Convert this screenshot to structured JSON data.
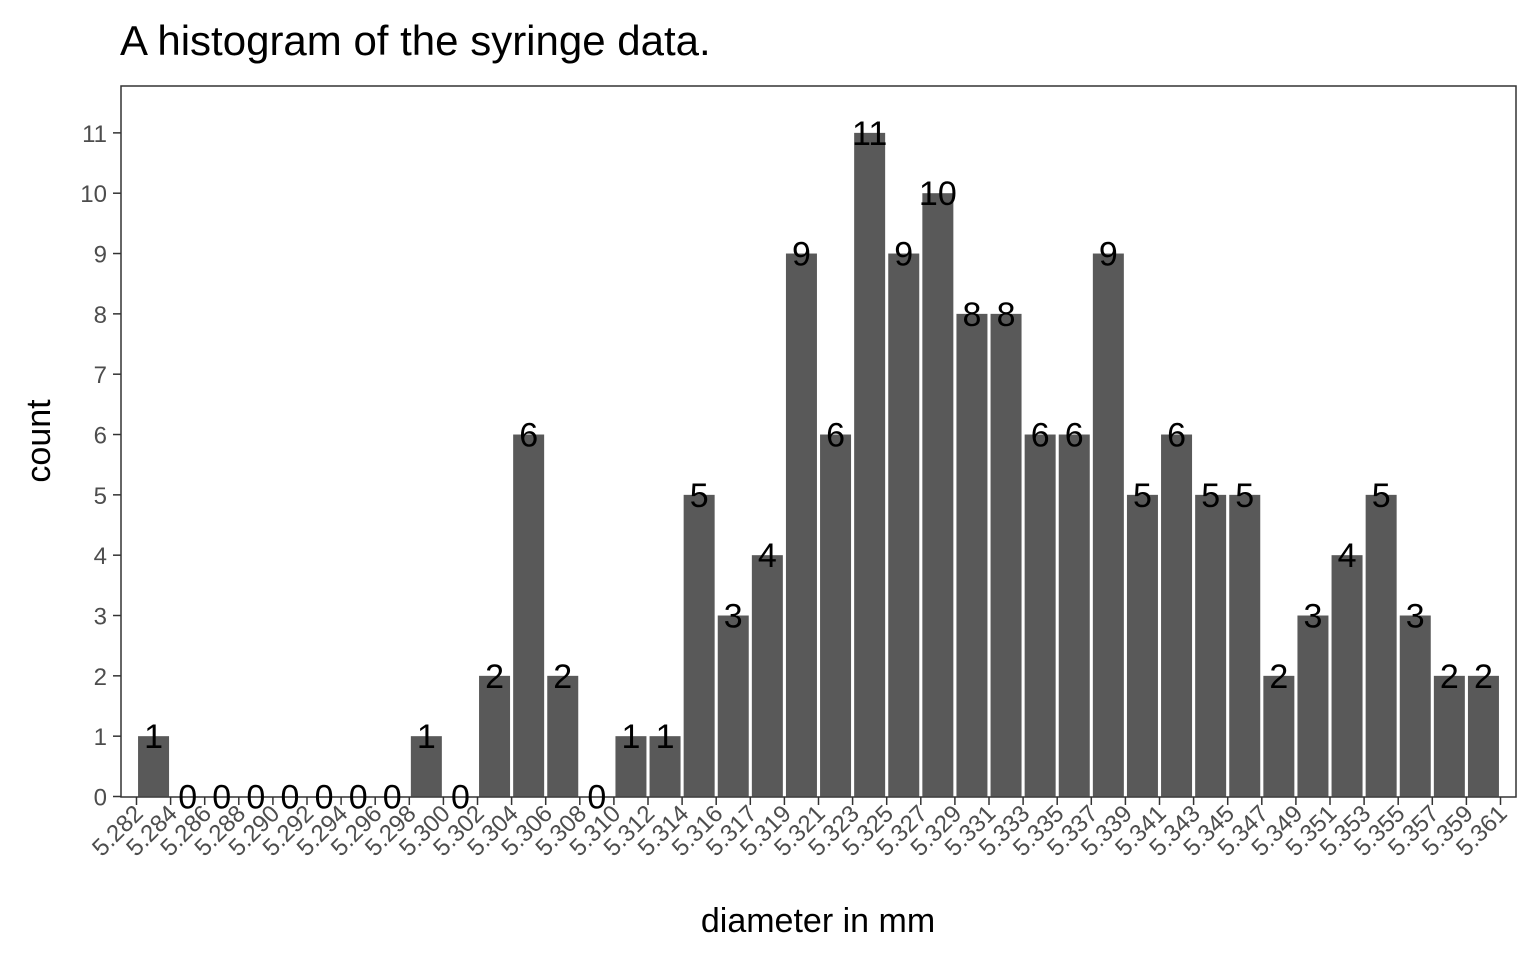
{
  "chart_data": {
    "type": "bar",
    "title": "A histogram of the syringe data.",
    "xlabel": "diameter in mm",
    "ylabel": "count",
    "ylim": [
      0,
      11.7
    ],
    "yticks": [
      "0",
      "1",
      "2",
      "3",
      "4",
      "5",
      "6",
      "7",
      "8",
      "9",
      "10",
      "11"
    ],
    "xticks": [
      "5.282",
      "5.284",
      "5.286",
      "5.288",
      "5.290",
      "5.292",
      "5.294",
      "5.296",
      "5.298",
      "5.300",
      "5.302",
      "5.304",
      "5.306",
      "5.308",
      "5.310",
      "5.312",
      "5.314",
      "5.316",
      "5.317",
      "5.319",
      "5.321",
      "5.323",
      "5.325",
      "5.327",
      "5.329",
      "5.331",
      "5.333",
      "5.335",
      "5.337",
      "5.339",
      "5.341",
      "5.343",
      "5.345",
      "5.347",
      "5.349",
      "5.351",
      "5.353",
      "5.355",
      "5.357",
      "5.359",
      "5.361"
    ],
    "values": [
      1,
      0,
      0,
      0,
      0,
      0,
      0,
      0,
      1,
      0,
      2,
      6,
      2,
      0,
      1,
      1,
      5,
      3,
      4,
      9,
      6,
      11,
      9,
      10,
      8,
      8,
      6,
      6,
      9,
      5,
      6,
      5,
      5,
      2,
      3,
      4,
      5,
      3,
      2,
      2
    ],
    "value_labels": [
      "1",
      "0",
      "0",
      "0",
      "0",
      "0",
      "0",
      "0",
      "1",
      "0",
      "2",
      "6",
      "2",
      "0",
      "1",
      "1",
      "5",
      "3",
      "4",
      "9",
      "6",
      "11",
      "9",
      "10",
      "8",
      "8",
      "6",
      "6",
      "9",
      "5",
      "6",
      "5",
      "5",
      "2",
      "3",
      "4",
      "5",
      "3",
      "2",
      "2"
    ],
    "grid": false,
    "bar_color": "#595959",
    "panel_border_color": "#333333"
  }
}
